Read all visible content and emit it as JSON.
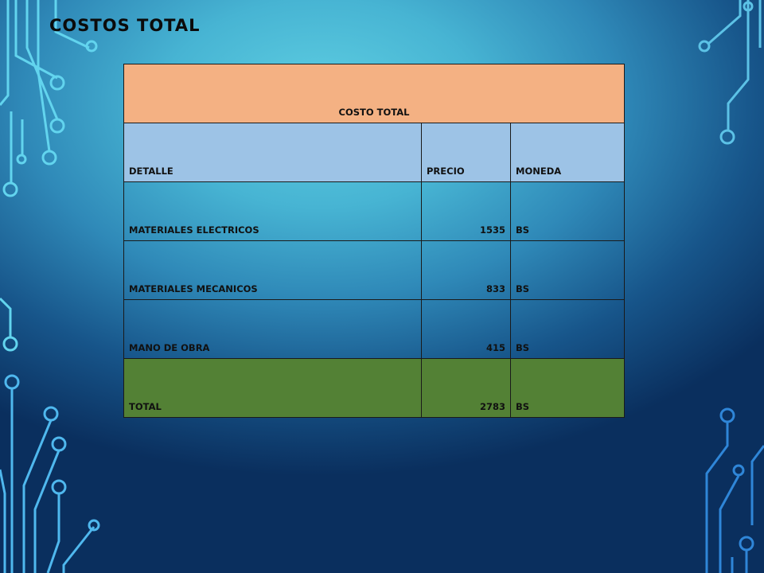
{
  "slide": {
    "title": "COSTOS TOTAL"
  },
  "table": {
    "header": "COSTO TOTAL",
    "columns": [
      "DETALLE",
      "PRECIO",
      "MONEDA"
    ],
    "rows": [
      {
        "detalle": "MATERIALES ELECTRICOS",
        "precio": "1535",
        "moneda": "BS"
      },
      {
        "detalle": "MATERIALES MECANICOS",
        "precio": "833",
        "moneda": "BS"
      },
      {
        "detalle": "MANO DE OBRA",
        "precio": "415",
        "moneda": "BS"
      }
    ],
    "total": {
      "detalle": "TOTAL",
      "precio": "2783",
      "moneda": "BS"
    }
  },
  "colors": {
    "header_fill": "#f4b183",
    "column_header_fill": "#9dc3e6",
    "total_fill": "#538135",
    "circuit_light": "#5cd0ee",
    "circuit_dark": "#2f86d8"
  },
  "icons": [
    "circuit-decoration"
  ]
}
